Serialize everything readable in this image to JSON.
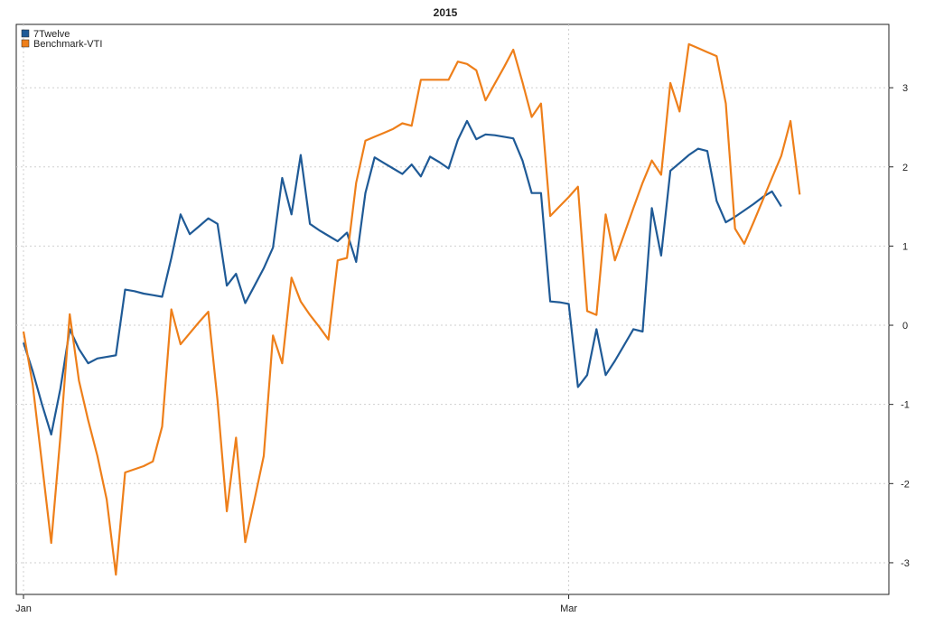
{
  "chart_data": {
    "type": "line",
    "title": "2015",
    "xlabel": "",
    "ylabel": "",
    "x_tick_labels": [
      "Jan",
      "Mar"
    ],
    "ylim": [
      -3.4,
      3.8
    ],
    "y_ticks": [
      -3,
      -2,
      -1,
      0,
      1,
      2,
      3
    ],
    "grid": true,
    "legend_position": "top-left",
    "x_index": [
      0,
      1,
      2,
      3,
      4,
      5,
      6,
      7,
      8,
      9,
      10,
      11,
      12,
      13,
      14,
      15,
      16,
      17,
      18,
      19,
      20,
      21,
      22,
      23,
      24,
      25,
      26,
      27,
      28,
      29,
      30,
      31,
      32,
      33,
      34,
      35,
      36,
      37,
      38,
      39,
      40,
      41,
      42,
      43,
      44,
      45,
      46,
      47,
      48,
      49,
      50,
      51,
      52,
      53,
      54,
      55,
      56,
      57,
      58,
      59,
      60,
      61,
      62,
      63,
      64,
      65,
      66,
      67,
      68,
      69,
      70,
      71,
      72,
      73,
      74,
      75,
      76,
      77,
      78,
      79,
      80,
      81,
      82,
      83,
      84,
      85,
      86,
      87,
      88,
      89,
      90,
      91
    ],
    "series": [
      {
        "name": "7Twelve",
        "color": "#1f5a96",
        "values": [
          -0.22,
          -0.58,
          -1.0,
          -1.38,
          -0.8,
          -0.05,
          -0.3,
          -0.48,
          -0.42,
          -0.4,
          -0.38,
          0.45,
          0.43,
          0.4,
          0.38,
          0.36,
          0.85,
          1.4,
          1.15,
          1.25,
          1.35,
          1.28,
          0.5,
          0.65,
          0.28,
          0.5,
          0.72,
          0.98,
          1.86,
          1.4,
          2.15,
          1.28,
          1.2,
          1.13,
          1.06,
          1.17,
          0.8,
          1.67,
          2.12,
          2.05,
          1.98,
          1.91,
          2.03,
          1.88,
          2.13,
          2.06,
          1.98,
          2.34,
          2.58,
          2.35,
          2.41,
          2.4,
          2.38,
          2.36,
          2.08,
          1.67,
          1.67,
          0.3,
          0.29,
          0.27,
          -0.78,
          -0.63,
          -0.05,
          -0.63,
          -0.45,
          -0.25,
          -0.05,
          -0.08,
          1.48,
          0.88,
          1.95,
          2.05,
          2.15,
          2.23,
          2.2,
          1.57,
          1.3,
          1.37,
          1.45,
          1.53,
          1.62,
          1.69,
          1.5
        ],
        "x": [
          0,
          1,
          2,
          3,
          4,
          5,
          6,
          7,
          8,
          9,
          10,
          11,
          12,
          13,
          14,
          15,
          16,
          17,
          18,
          19,
          20,
          21,
          22,
          23,
          24,
          25,
          26,
          27,
          28,
          29,
          30,
          31,
          32,
          33,
          34,
          35,
          36,
          37,
          38,
          39,
          40,
          41,
          42,
          43,
          44,
          45,
          46,
          47,
          48,
          49,
          50,
          51,
          52,
          53,
          54,
          55,
          56,
          57,
          58,
          59,
          60,
          61,
          62,
          63,
          64,
          65,
          66,
          67,
          68,
          69,
          70,
          71,
          72,
          73,
          74,
          75,
          76,
          77,
          78,
          79,
          80,
          81,
          82
        ]
      },
      {
        "name": "Benchmark-VTI",
        "color": "#ee7f1a",
        "values": [
          -0.08,
          -0.75,
          -1.75,
          -2.75,
          -1.4,
          0.14,
          -0.7,
          -1.2,
          -1.65,
          -2.2,
          -3.15,
          -1.86,
          -1.82,
          -1.78,
          -1.72,
          -1.28,
          0.2,
          -0.24,
          -0.1,
          0.04,
          0.17,
          -0.95,
          -2.35,
          -1.42,
          -2.74,
          -2.2,
          -1.65,
          -0.13,
          -0.48,
          0.6,
          0.3,
          0.13,
          -0.02,
          -0.18,
          0.82,
          0.85,
          1.8,
          2.33,
          2.38,
          2.43,
          2.48,
          2.55,
          2.52,
          3.1,
          3.1,
          3.1,
          3.1,
          3.33,
          3.3,
          3.22,
          2.84,
          3.05,
          3.26,
          3.48,
          3.07,
          2.63,
          2.8,
          1.38,
          1.5,
          1.62,
          1.75,
          0.18,
          0.13,
          1.4,
          0.82,
          1.15,
          1.48,
          1.8,
          2.08,
          1.9,
          3.06,
          2.7,
          3.55,
          3.5,
          3.45,
          3.4,
          2.8,
          1.22,
          1.03,
          1.3,
          1.58,
          1.86,
          2.14,
          2.58,
          1.65
        ],
        "x": [
          0,
          1,
          2,
          3,
          4,
          5,
          6,
          7,
          8,
          9,
          10,
          11,
          12,
          13,
          14,
          15,
          16,
          17,
          18,
          19,
          20,
          21,
          22,
          23,
          24,
          25,
          26,
          27,
          28,
          29,
          30,
          31,
          32,
          33,
          34,
          35,
          36,
          37,
          38,
          39,
          40,
          41,
          42,
          43,
          44,
          45,
          46,
          47,
          48,
          49,
          50,
          51,
          52,
          53,
          54,
          55,
          56,
          57,
          58,
          59,
          60,
          61,
          62,
          63,
          64,
          65,
          66,
          67,
          68,
          69,
          70,
          71,
          72,
          73,
          74,
          75,
          76,
          77,
          78,
          79,
          80,
          81,
          82,
          83,
          84
        ]
      }
    ]
  }
}
